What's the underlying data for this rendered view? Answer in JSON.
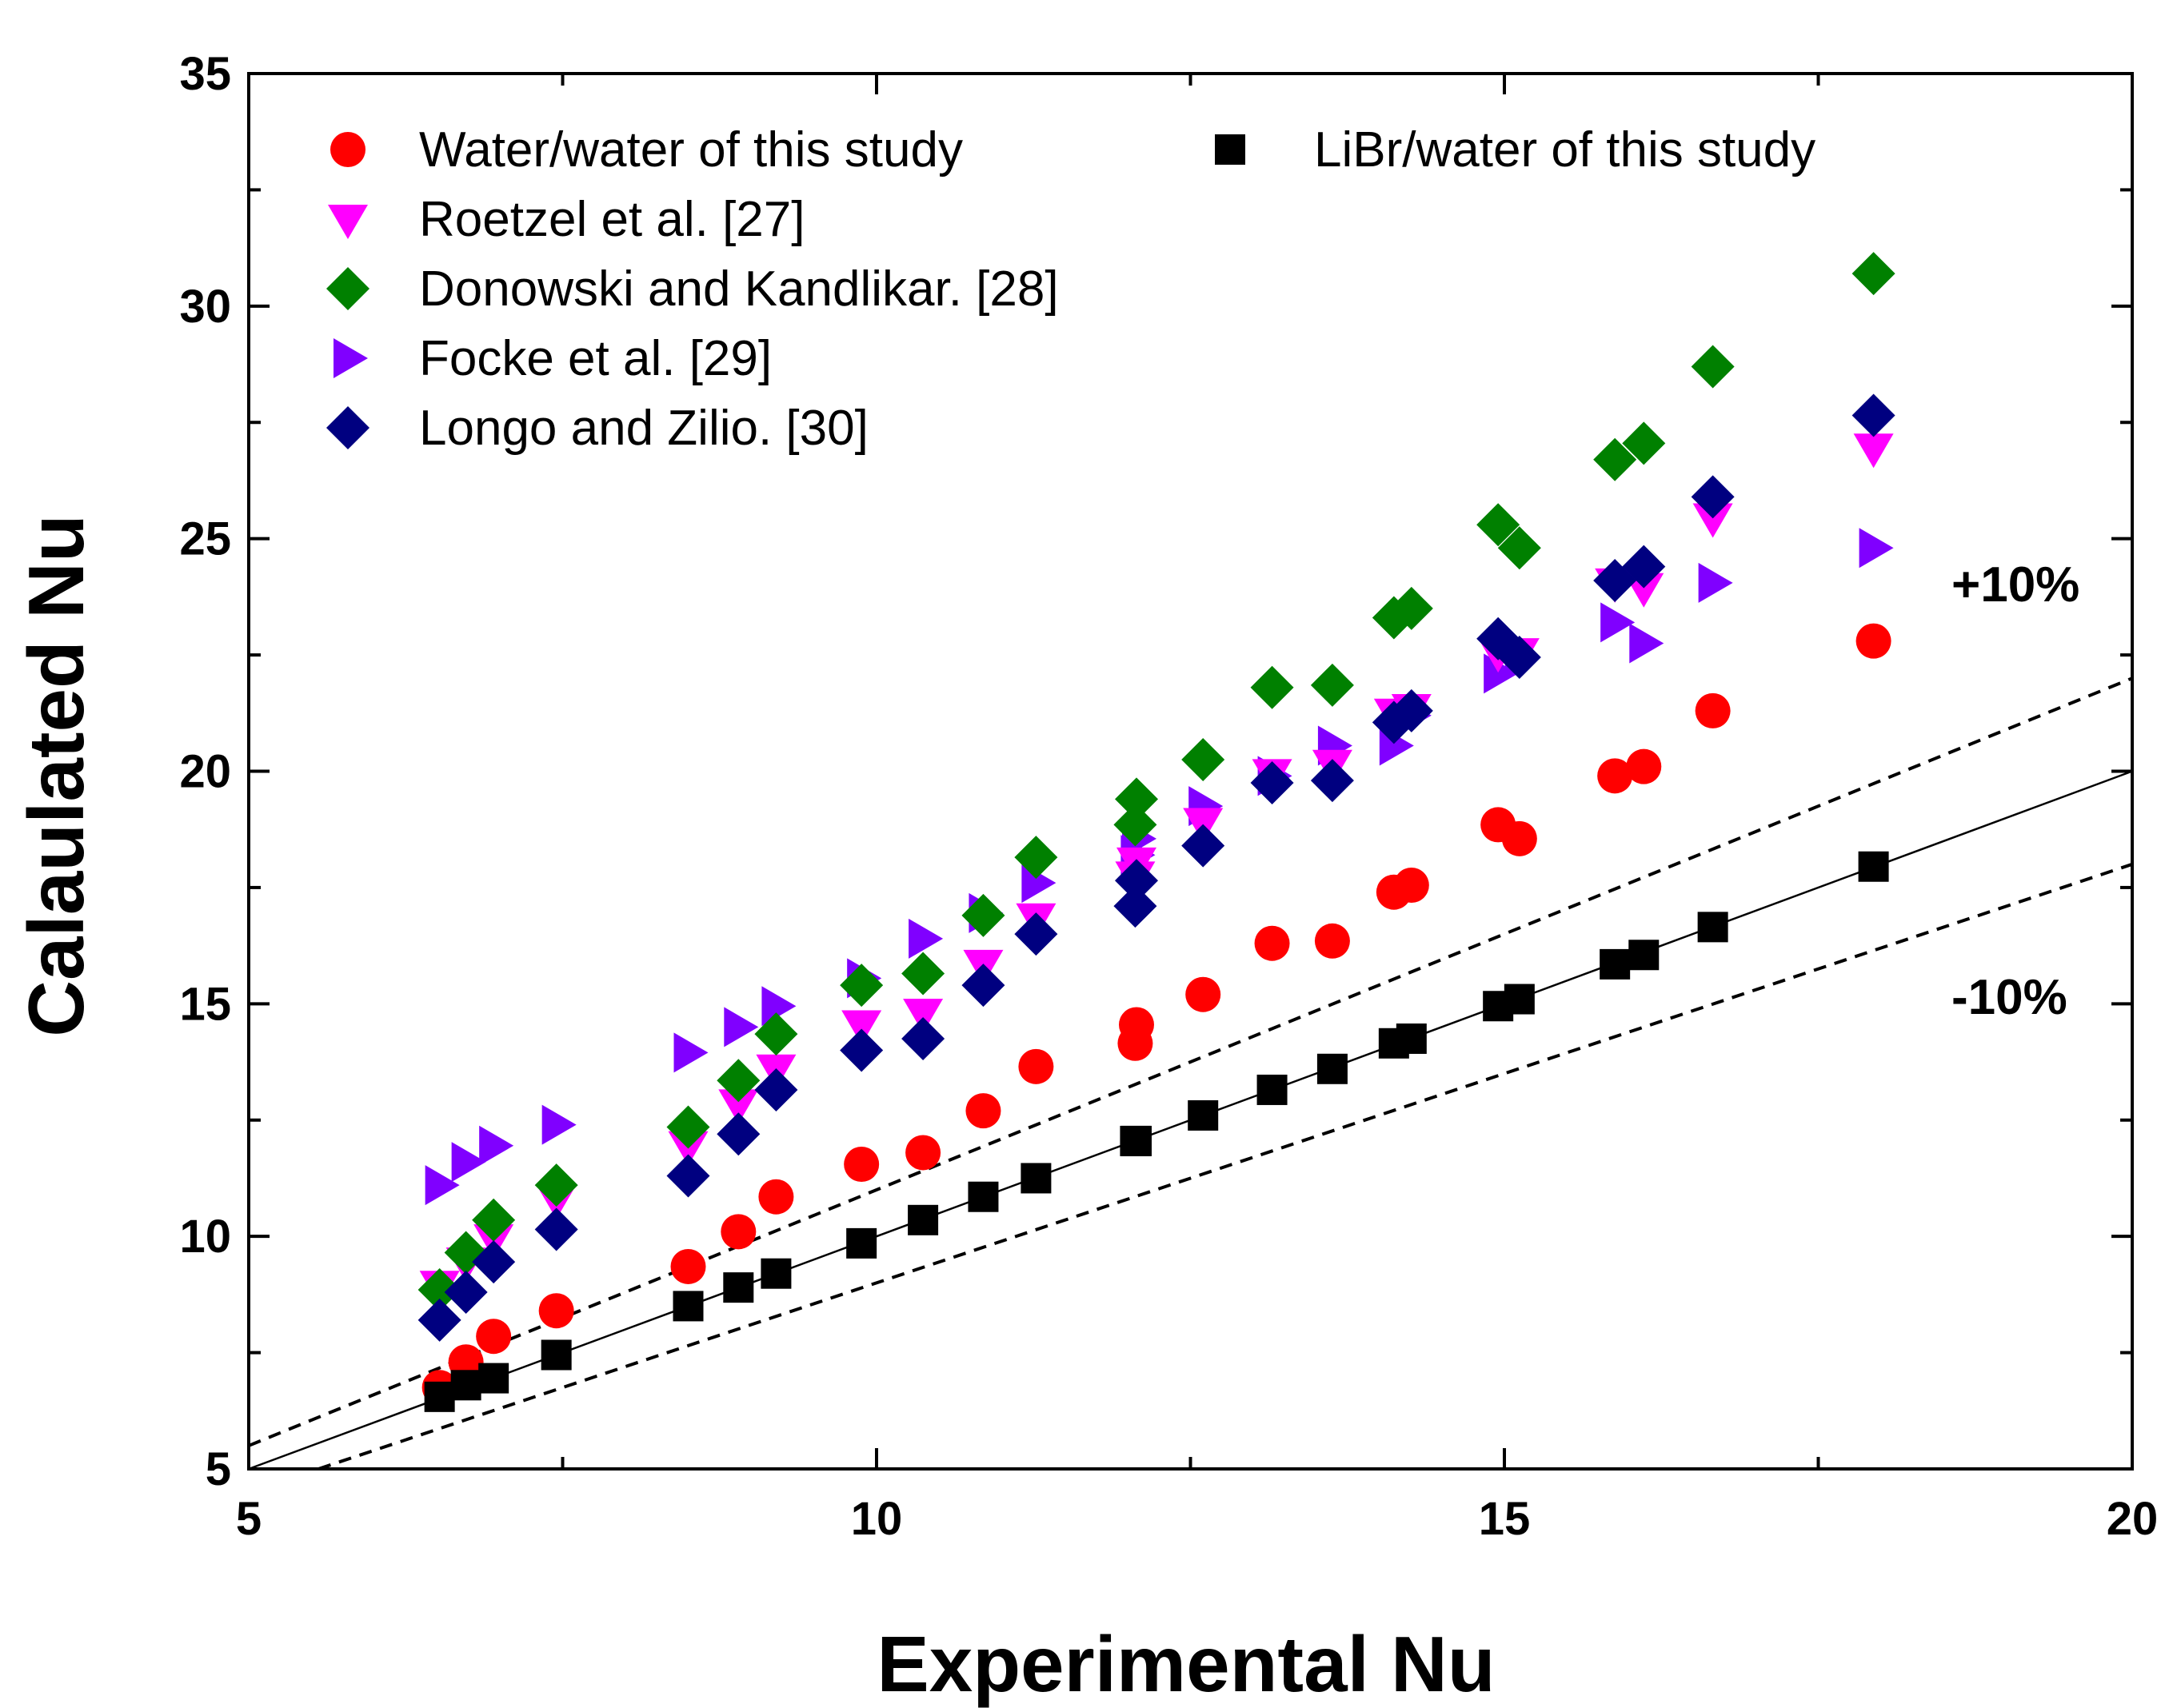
{
  "chart_data": {
    "type": "scatter",
    "title": "",
    "xlabel": "Experimental Nu",
    "ylabel": "Calaulated Nu",
    "xlim": [
      5,
      20
    ],
    "ylim": [
      5,
      35
    ],
    "x_ticks": [
      5,
      10,
      15,
      20
    ],
    "x_tick_labels": [
      "5",
      "10",
      "15",
      "20"
    ],
    "y_ticks": [
      5,
      10,
      15,
      20,
      25,
      30,
      35
    ],
    "y_tick_labels": [
      "5",
      "10",
      "15",
      "20",
      "25",
      "30",
      "35"
    ],
    "grid": false,
    "legend_position": "top-left",
    "series": [
      {
        "name": "Water/water of this study",
        "marker": "circle",
        "color": "#ff0000",
        "points": [
          [
            6.52,
            6.75
          ],
          [
            6.73,
            7.3
          ],
          [
            6.95,
            7.85
          ],
          [
            7.45,
            8.4
          ],
          [
            8.5,
            9.35
          ],
          [
            8.9,
            10.1
          ],
          [
            9.2,
            10.85
          ],
          [
            9.88,
            11.55
          ],
          [
            10.37,
            11.8
          ],
          [
            10.85,
            12.7
          ],
          [
            11.27,
            13.65
          ],
          [
            12.06,
            14.15
          ],
          [
            12.07,
            14.55
          ],
          [
            12.6,
            15.2
          ],
          [
            13.15,
            16.3
          ],
          [
            13.63,
            16.35
          ],
          [
            14.12,
            17.4
          ],
          [
            14.26,
            17.55
          ],
          [
            14.95,
            18.85
          ],
          [
            15.12,
            18.55
          ],
          [
            15.88,
            19.9
          ],
          [
            16.11,
            20.1
          ],
          [
            16.66,
            21.3
          ],
          [
            17.94,
            22.8
          ]
        ]
      },
      {
        "name": "Roetzel et al. [27]",
        "marker": "triangle-down",
        "color": "#ff00ff",
        "points": [
          [
            6.52,
            8.95
          ],
          [
            6.73,
            9.45
          ],
          [
            6.95,
            9.95
          ],
          [
            7.45,
            10.8
          ],
          [
            8.5,
            11.95
          ],
          [
            8.9,
            12.85
          ],
          [
            9.2,
            13.6
          ],
          [
            9.88,
            14.55
          ],
          [
            10.37,
            14.8
          ],
          [
            10.85,
            15.85
          ],
          [
            11.27,
            16.85
          ],
          [
            12.06,
            17.75
          ],
          [
            12.07,
            18.05
          ],
          [
            12.6,
            18.9
          ],
          [
            13.15,
            19.95
          ],
          [
            13.63,
            20.15
          ],
          [
            14.12,
            21.25
          ],
          [
            14.26,
            21.35
          ],
          [
            14.95,
            22.55
          ],
          [
            15.12,
            22.55
          ],
          [
            15.88,
            24.05
          ],
          [
            16.11,
            23.95
          ],
          [
            16.66,
            25.45
          ],
          [
            17.94,
            26.95
          ]
        ]
      },
      {
        "name": "Donowski and Kandlikar. [28]",
        "marker": "diamond",
        "color": "#008000",
        "points": [
          [
            6.52,
            8.85
          ],
          [
            6.73,
            9.65
          ],
          [
            6.95,
            10.35
          ],
          [
            7.45,
            11.1
          ],
          [
            8.5,
            12.35
          ],
          [
            8.9,
            13.35
          ],
          [
            9.2,
            14.35
          ],
          [
            9.88,
            15.4
          ],
          [
            10.37,
            15.65
          ],
          [
            10.85,
            16.9
          ],
          [
            11.27,
            18.15
          ],
          [
            12.06,
            18.85
          ],
          [
            12.07,
            19.4
          ],
          [
            12.6,
            20.25
          ],
          [
            13.15,
            21.8
          ],
          [
            13.63,
            21.85
          ],
          [
            14.12,
            23.3
          ],
          [
            14.26,
            23.5
          ],
          [
            14.95,
            25.3
          ],
          [
            15.12,
            24.8
          ],
          [
            15.88,
            26.7
          ],
          [
            16.11,
            27.05
          ],
          [
            16.66,
            28.7
          ],
          [
            17.94,
            30.7
          ]
        ]
      },
      {
        "name": "Focke et al. [29]",
        "marker": "triangle-right",
        "color": "#8000ff",
        "points": [
          [
            6.52,
            11.1
          ],
          [
            6.73,
            11.6
          ],
          [
            6.95,
            11.95
          ],
          [
            7.45,
            12.4
          ],
          [
            8.5,
            13.95
          ],
          [
            8.9,
            14.5
          ],
          [
            9.2,
            14.95
          ],
          [
            9.88,
            15.55
          ],
          [
            10.37,
            16.4
          ],
          [
            10.85,
            16.95
          ],
          [
            11.27,
            17.6
          ],
          [
            12.06,
            18.2
          ],
          [
            12.07,
            18.55
          ],
          [
            12.6,
            19.25
          ],
          [
            13.15,
            19.9
          ],
          [
            13.63,
            20.55
          ],
          [
            14.12,
            20.55
          ],
          [
            14.26,
            21.2
          ],
          [
            14.95,
            22.1
          ],
          [
            15.12,
            22.45
          ],
          [
            15.88,
            23.2
          ],
          [
            16.11,
            22.75
          ],
          [
            16.66,
            24.05
          ],
          [
            17.94,
            24.8
          ]
        ]
      },
      {
        "name": "Longo and Zilio. [30]",
        "marker": "diamond",
        "color": "#000080",
        "points": [
          [
            6.52,
            8.2
          ],
          [
            6.73,
            8.8
          ],
          [
            6.95,
            9.45
          ],
          [
            7.45,
            10.15
          ],
          [
            8.5,
            11.3
          ],
          [
            8.9,
            12.2
          ],
          [
            9.2,
            13.15
          ],
          [
            9.88,
            14.0
          ],
          [
            10.37,
            14.25
          ],
          [
            10.85,
            15.4
          ],
          [
            11.27,
            16.5
          ],
          [
            12.06,
            17.1
          ],
          [
            12.07,
            17.65
          ],
          [
            12.6,
            18.4
          ],
          [
            13.15,
            19.75
          ],
          [
            13.63,
            19.8
          ],
          [
            14.12,
            21.05
          ],
          [
            14.26,
            21.3
          ],
          [
            14.95,
            22.85
          ],
          [
            15.12,
            22.45
          ],
          [
            15.88,
            24.1
          ],
          [
            16.11,
            24.4
          ],
          [
            16.66,
            25.9
          ],
          [
            17.94,
            27.65
          ]
        ]
      },
      {
        "name": "LiBr/water of this study",
        "marker": "square",
        "color": "#000000",
        "points": [
          [
            6.52,
            6.55
          ],
          [
            6.73,
            6.8
          ],
          [
            6.95,
            6.95
          ],
          [
            7.45,
            7.45
          ],
          [
            8.5,
            8.5
          ],
          [
            8.9,
            8.9
          ],
          [
            9.2,
            9.2
          ],
          [
            9.88,
            9.85
          ],
          [
            10.37,
            10.35
          ],
          [
            10.85,
            10.85
          ],
          [
            11.27,
            11.25
          ],
          [
            12.06,
            12.05
          ],
          [
            12.07,
            12.05
          ],
          [
            12.6,
            12.6
          ],
          [
            13.15,
            13.15
          ],
          [
            13.63,
            13.6
          ],
          [
            14.12,
            14.15
          ],
          [
            14.26,
            14.25
          ],
          [
            14.95,
            14.95
          ],
          [
            15.12,
            15.1
          ],
          [
            15.88,
            15.85
          ],
          [
            16.11,
            16.05
          ],
          [
            16.66,
            16.65
          ],
          [
            17.94,
            17.95
          ]
        ]
      }
    ],
    "reference_lines": [
      {
        "name": "y = x",
        "style": "solid",
        "slope": 1.0
      },
      {
        "name": "+10%",
        "style": "dashed",
        "slope": 1.1
      },
      {
        "name": "-10%",
        "style": "dashed",
        "slope": 0.9
      }
    ],
    "annotations": {
      "plus10": "+10%",
      "minus10": "-10%"
    }
  }
}
